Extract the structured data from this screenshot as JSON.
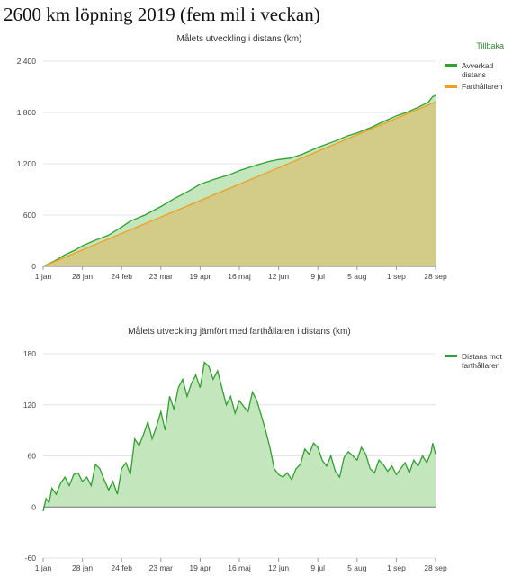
{
  "page": {
    "title": "2600 km löpning 2019 (fem mil i veckan)",
    "back_link": "Tillbaka"
  },
  "colors": {
    "green_line": "#2ea12e",
    "green_fill": "#c3e6bd",
    "orange_line": "#f0a020",
    "olive_fill": "#d2cc88"
  },
  "chart_data": [
    {
      "type": "area",
      "title": "Målets utveckling i distans (km)",
      "x_tick_labels": [
        "1 jan",
        "28 jan",
        "24 feb",
        "23 mar",
        "19 apr",
        "16 maj",
        "12 jun",
        "9 jul",
        "5 aug",
        "1 sep",
        "28 sep"
      ],
      "x_tick_days": [
        0,
        27,
        54,
        81,
        108,
        135,
        162,
        189,
        216,
        243,
        270
      ],
      "y_tick_labels": [
        "0",
        "600",
        "1 200",
        "1 800",
        "2 400"
      ],
      "y_ticks": [
        0,
        600,
        1200,
        1800,
        2400
      ],
      "ylim": [
        0,
        2400
      ],
      "xlim_days": [
        0,
        270
      ],
      "x_start_date": "2019-01-01",
      "legend_position": "right",
      "series": [
        {
          "name": "Avverkad distans",
          "x_days": [
            0,
            8,
            15,
            22,
            27,
            35,
            45,
            54,
            60,
            70,
            81,
            90,
            100,
            108,
            118,
            128,
            135,
            145,
            155,
            162,
            170,
            178,
            189,
            200,
            210,
            216,
            225,
            235,
            243,
            250,
            258,
            265,
            268,
            270
          ],
          "values": [
            0,
            65,
            135,
            190,
            240,
            300,
            365,
            460,
            530,
            600,
            700,
            790,
            880,
            960,
            1020,
            1070,
            1120,
            1175,
            1225,
            1250,
            1265,
            1310,
            1390,
            1460,
            1530,
            1560,
            1620,
            1700,
            1760,
            1800,
            1860,
            1920,
            1985,
            2000
          ]
        },
        {
          "name": "Farthållaren",
          "x_days": [
            0,
            270
          ],
          "values": [
            0,
            1923
          ]
        }
      ]
    },
    {
      "type": "area",
      "title": "Målets utveckling jämfört med farthållaren i distans (km)",
      "x_tick_labels": [
        "1 jan",
        "28 jan",
        "24 feb",
        "23 mar",
        "19 apr",
        "16 maj",
        "12 jun",
        "9 jul",
        "5 aug",
        "1 sep",
        "28 sep"
      ],
      "x_tick_days": [
        0,
        27,
        54,
        81,
        108,
        135,
        162,
        189,
        216,
        243,
        270
      ],
      "y_tick_labels": [
        "-60",
        "0",
        "60",
        "120",
        "180"
      ],
      "y_ticks": [
        -60,
        0,
        60,
        120,
        180
      ],
      "ylim": [
        -60,
        180
      ],
      "xlim_days": [
        0,
        270
      ],
      "x_start_date": "2019-01-01",
      "legend_position": "right",
      "series": [
        {
          "name": "Distans mot farthållaren",
          "x_days": [
            0,
            2,
            4,
            6,
            9,
            12,
            15,
            18,
            21,
            24,
            27,
            30,
            33,
            36,
            39,
            42,
            45,
            48,
            51,
            54,
            57,
            60,
            63,
            66,
            69,
            72,
            75,
            78,
            81,
            84,
            87,
            90,
            93,
            96,
            99,
            102,
            105,
            108,
            111,
            114,
            117,
            120,
            123,
            126,
            129,
            132,
            135,
            138,
            141,
            144,
            147,
            150,
            153,
            156,
            159,
            162,
            165,
            168,
            171,
            174,
            177,
            180,
            183,
            186,
            189,
            192,
            195,
            198,
            201,
            204,
            207,
            210,
            213,
            216,
            219,
            222,
            225,
            228,
            231,
            234,
            237,
            240,
            243,
            246,
            249,
            252,
            255,
            258,
            261,
            264,
            267,
            268,
            270
          ],
          "values": [
            -5,
            10,
            5,
            22,
            15,
            28,
            35,
            25,
            38,
            40,
            30,
            35,
            25,
            50,
            45,
            32,
            20,
            30,
            15,
            45,
            52,
            38,
            80,
            72,
            85,
            100,
            80,
            95,
            112,
            90,
            130,
            115,
            140,
            150,
            130,
            145,
            155,
            140,
            170,
            165,
            150,
            160,
            140,
            120,
            130,
            110,
            125,
            118,
            112,
            135,
            125,
            108,
            90,
            70,
            45,
            38,
            35,
            40,
            32,
            45,
            50,
            68,
            62,
            75,
            70,
            55,
            48,
            60,
            42,
            35,
            58,
            65,
            60,
            55,
            70,
            62,
            45,
            40,
            55,
            50,
            42,
            48,
            38,
            45,
            52,
            40,
            55,
            48,
            60,
            52,
            65,
            75,
            62
          ]
        }
      ]
    }
  ]
}
